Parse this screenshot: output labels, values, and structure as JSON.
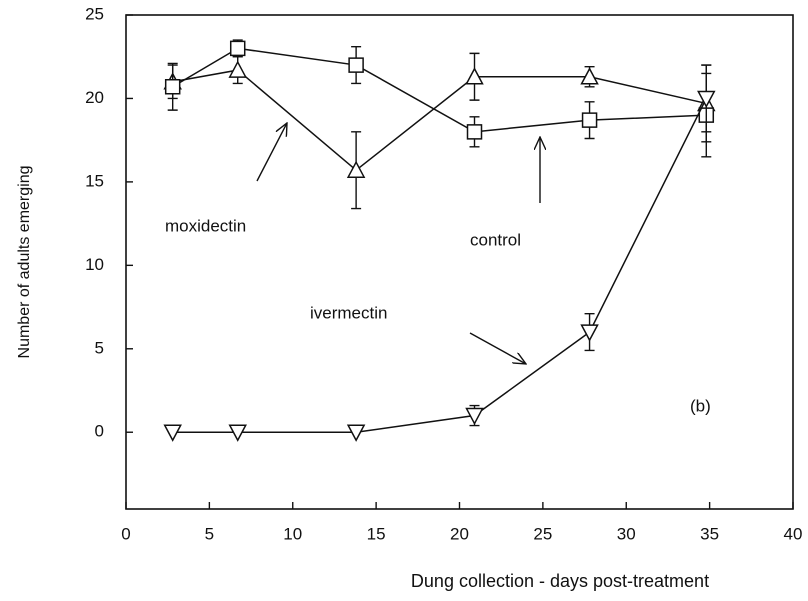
{
  "chart_data": {
    "type": "line",
    "x_label": "Dung collection - days post-treatment",
    "y_label": "Number of adults emerging",
    "xlim": [
      0,
      40
    ],
    "ylim": [
      -4.6,
      25
    ],
    "xticks": [
      0,
      5,
      10,
      15,
      20,
      25,
      30,
      35,
      40
    ],
    "yticks": [
      0,
      5,
      10,
      15,
      20,
      25
    ],
    "panel_label": "(b)",
    "series": [
      {
        "name": "moxidectin",
        "color": "#111111",
        "marker": "triangle-up",
        "x": [
          2.8,
          6.7,
          13.8,
          20.9,
          27.8,
          34.8
        ],
        "values": [
          21.0,
          21.7,
          15.7,
          21.3,
          21.3,
          19.7
        ],
        "errors": [
          1.0,
          0.8,
          2.3,
          1.4,
          0.6,
          2.3
        ]
      },
      {
        "name": "control",
        "color": "#111111",
        "marker": "square",
        "x": [
          2.8,
          6.7,
          13.8,
          20.9,
          27.8,
          34.8
        ],
        "values": [
          20.7,
          23.0,
          22.0,
          18.0,
          18.7,
          19.0
        ],
        "errors": [
          1.4,
          0.5,
          1.1,
          0.9,
          1.1,
          2.5
        ]
      },
      {
        "name": "ivermectin",
        "color": "#111111",
        "marker": "triangle-down",
        "x": [
          2.8,
          6.7,
          13.8,
          20.9,
          27.8,
          34.8
        ],
        "values": [
          0,
          0,
          0,
          1.0,
          6.0,
          20.0
        ],
        "errors": [
          0,
          0,
          0,
          0.6,
          1.1,
          2.0
        ]
      }
    ]
  }
}
